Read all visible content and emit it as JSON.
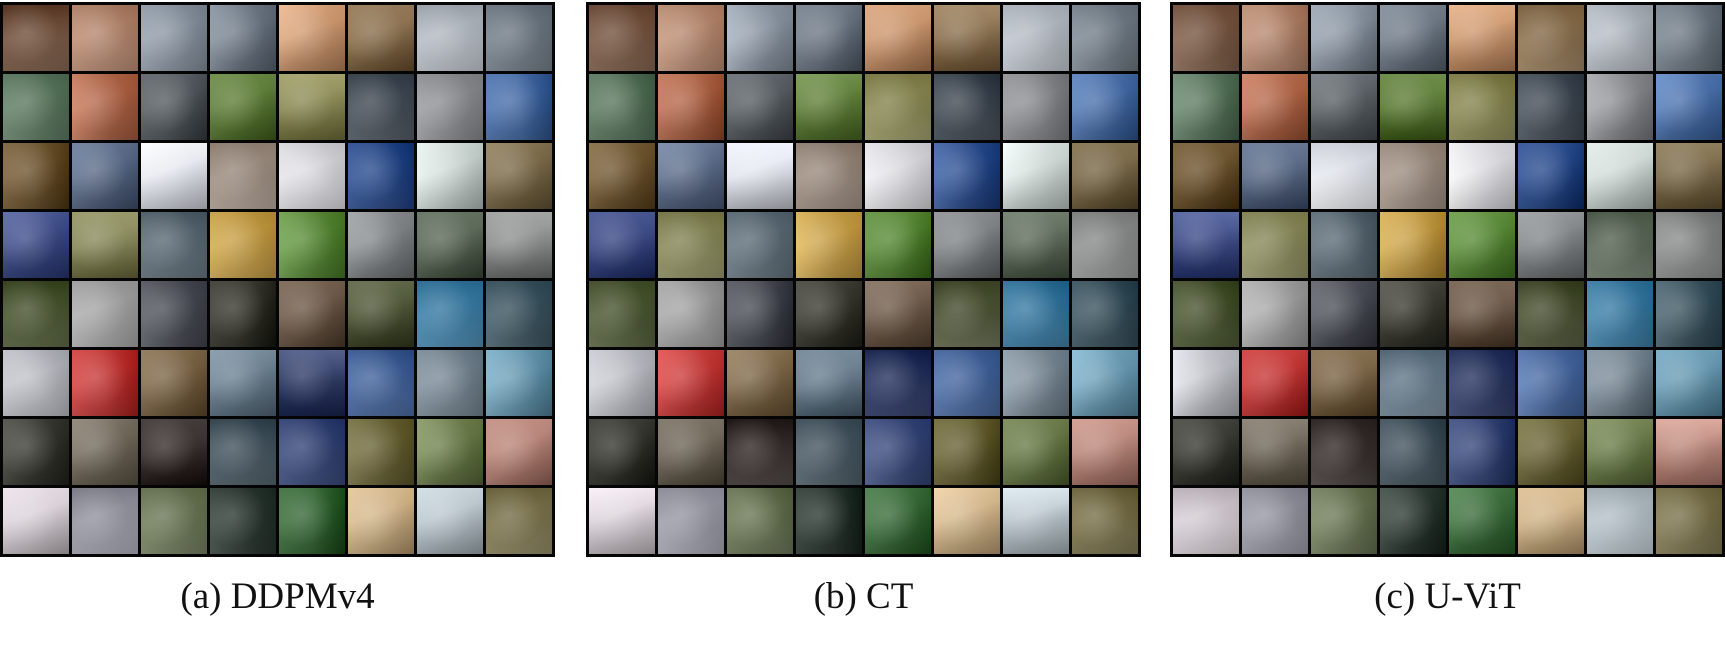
{
  "panels": [
    {
      "caption": "(a) DDPMv4"
    },
    {
      "caption": "(b) CT"
    },
    {
      "caption": "(c) U-ViT"
    }
  ],
  "tile_palette": [
    [
      "#7a5a46",
      "#b98c73",
      "#8d98a4",
      "#6f7a86",
      "#c9966f",
      "#8b7150",
      "#b8bec6",
      "#737e88"
    ],
    [
      "#5e7a62",
      "#b0674a",
      "#585e63",
      "#5f7d3a",
      "#8b8a56",
      "#47505a",
      "#8d8e92",
      "#4a6fa8"
    ],
    [
      "#6e5632",
      "#5a6a86",
      "#e3e6ee",
      "#9e8f82",
      "#e0e0e4",
      "#2e4f8e",
      "#cfd9d6",
      "#7a6a4a"
    ],
    [
      "#3c4a84",
      "#8b8b5e",
      "#61707a",
      "#c7a04a",
      "#5a8a3a",
      "#808486",
      "#5d6a5a",
      "#8e9090"
    ],
    [
      "#4e5a36",
      "#a6a6a6",
      "#4b4e56",
      "#3a3a32",
      "#6d5a4a",
      "#4e5638",
      "#3f7fa6",
      "#3e5662"
    ],
    [
      "#bfc2c8",
      "#c43c3a",
      "#7a6446",
      "#6a7e8e",
      "#2e3a64",
      "#4a6aa0",
      "#7c8c98",
      "#6a9ab2"
    ],
    [
      "#3a3a34",
      "#6e6658",
      "#3a3230",
      "#4a5a64",
      "#3a4a7a",
      "#6a6438",
      "#6a7a4a",
      "#b8867a"
    ],
    [
      "#d8d0d6",
      "#9a9aa6",
      "#6e7a5a",
      "#2e3a34",
      "#3a6a3a",
      "#d0b48a",
      "#b8c4ca",
      "#7e7650"
    ]
  ]
}
